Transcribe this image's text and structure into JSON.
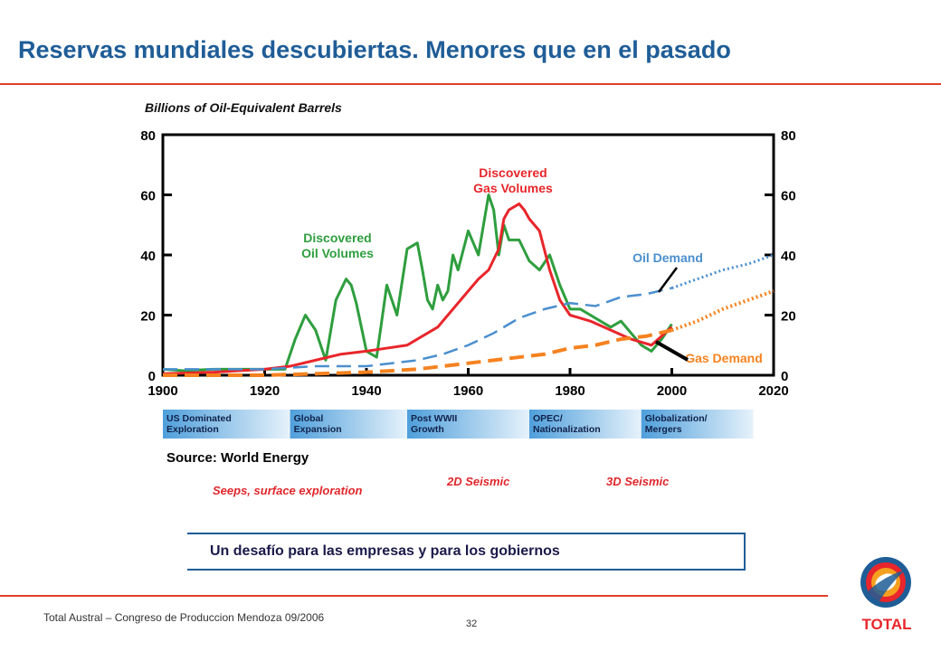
{
  "slide": {
    "title": "Reservas mundiales descubiertas. Menores que en el pasado",
    "source": "Source: World Energy",
    "callout": "Un desafío para las empresas y para los gobiernos",
    "footer": "Total Austral – Congreso de Produccion Mendoza 09/2006",
    "page_number": "32",
    "logo_text": "TOTAL"
  },
  "chart_data": {
    "type": "line",
    "title": "Billions of Oil-Equivalent Barrels",
    "xlim": [
      1900,
      2020
    ],
    "ylim": [
      0,
      80
    ],
    "x_ticks": [
      "1900",
      "1920",
      "1940",
      "1960",
      "1980",
      "2000",
      "2020"
    ],
    "y_ticks": [
      "0",
      "20",
      "40",
      "60",
      "80"
    ],
    "grid": false,
    "series": [
      {
        "name": "Discovered Oil Volumes",
        "label_lines": [
          "Discovered",
          "Oil Volumes"
        ],
        "color": "#2e9e3e",
        "style": "solid",
        "x": [
          1900,
          1904,
          1910,
          1915,
          1920,
          1924,
          1926,
          1928,
          1930,
          1932,
          1934,
          1936,
          1937,
          1938,
          1940,
          1942,
          1944,
          1946,
          1948,
          1950,
          1951,
          1952,
          1953,
          1954,
          1955,
          1956,
          1957,
          1958,
          1960,
          1962,
          1963,
          1964,
          1965,
          1966,
          1967,
          1968,
          1970,
          1972,
          1974,
          1976,
          1978,
          1980,
          1982,
          1984,
          1986,
          1988,
          1990,
          1992,
          1994,
          1996,
          1998,
          2000
        ],
        "y": [
          2,
          1.5,
          2,
          2,
          2,
          2,
          12,
          20,
          15,
          5,
          25,
          32,
          30,
          24,
          8,
          6,
          30,
          20,
          42,
          44,
          35,
          25,
          22,
          30,
          25,
          28,
          40,
          35,
          48,
          40,
          50,
          60,
          55,
          40,
          50,
          45,
          45,
          38,
          35,
          40,
          30,
          22,
          22,
          20,
          18,
          16,
          18,
          14,
          10,
          8,
          12,
          17
        ]
      },
      {
        "name": "Discovered Gas Volumes",
        "label_lines": [
          "Discovered",
          "Gas Volumes"
        ],
        "color": "#e8262b",
        "style": "solid",
        "x": [
          1900,
          1910,
          1920,
          1925,
          1930,
          1935,
          1940,
          1944,
          1948,
          1950,
          1952,
          1954,
          1956,
          1958,
          1960,
          1962,
          1964,
          1966,
          1967,
          1968,
          1969,
          1970,
          1971,
          1972,
          1974,
          1976,
          1978,
          1980,
          1984,
          1988,
          1992,
          1996,
          2000
        ],
        "y": [
          0.5,
          1,
          2,
          3,
          5,
          7,
          8,
          9,
          10,
          12,
          14,
          16,
          20,
          24,
          28,
          32,
          35,
          42,
          52,
          55,
          56,
          57,
          55,
          52,
          48,
          35,
          25,
          20,
          18,
          15,
          12,
          10,
          16
        ]
      },
      {
        "name": "Oil Demand",
        "label_lines": [
          "Oil Demand"
        ],
        "color": "#4a8fce",
        "style": "dashed",
        "projected_from": 2000,
        "x": [
          1900,
          1920,
          1930,
          1940,
          1945,
          1950,
          1955,
          1960,
          1965,
          1970,
          1975,
          1980,
          1985,
          1990,
          1995,
          2000,
          2005,
          2010,
          2015,
          2020
        ],
        "y": [
          2,
          2,
          3,
          3,
          4,
          5,
          7,
          10,
          14,
          19,
          22,
          24,
          23,
          26,
          27,
          29,
          32,
          35,
          37,
          40
        ]
      },
      {
        "name": "Gas Demand",
        "label_lines": [
          "Gas Demand"
        ],
        "color": "#f5821f",
        "style": "dashed",
        "projected_from": 2000,
        "x": [
          1900,
          1920,
          1940,
          1950,
          1955,
          1960,
          1965,
          1970,
          1975,
          1980,
          1985,
          1990,
          1995,
          2000,
          2005,
          2010,
          2015,
          2020
        ],
        "y": [
          0,
          0,
          1,
          2,
          3,
          4,
          5,
          6,
          7,
          9,
          10,
          12,
          13,
          15,
          18,
          22,
          25,
          28
        ]
      }
    ],
    "eras": [
      {
        "label": [
          "US Dominated",
          "Exploration"
        ],
        "x0": 1900,
        "x1": 1925
      },
      {
        "label": [
          "Global",
          "Expansion"
        ],
        "x0": 1925,
        "x1": 1948
      },
      {
        "label": [
          "Post WWII",
          "Growth"
        ],
        "x0": 1948,
        "x1": 1972
      },
      {
        "label": [
          "OPEC/",
          "Nationalization"
        ],
        "x0": 1972,
        "x1": 1994
      },
      {
        "label": [
          "Globalization/",
          "Mergers"
        ],
        "x0": 1994,
        "x1": 2016
      }
    ],
    "exploration_eras": [
      "Seeps, surface exploration",
      "2D Seismic",
      "3D Seismic"
    ]
  }
}
